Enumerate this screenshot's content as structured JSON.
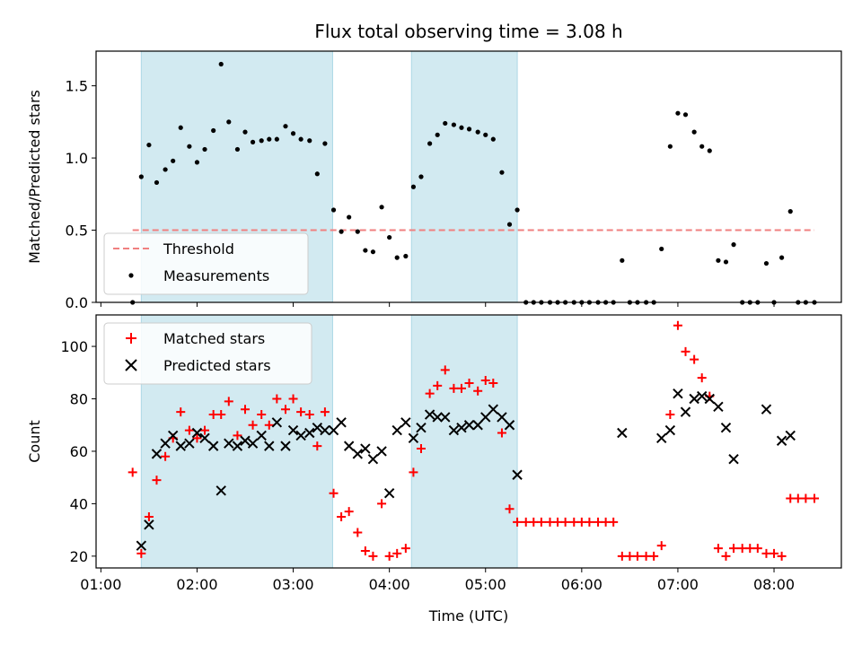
{
  "chart_data": {
    "type": "scatter",
    "title": "Flux total observing time = 3.08 h",
    "xlabel": "Time (UTC)",
    "x_unit": "hours UTC",
    "xlim": [
      0.95,
      8.7
    ],
    "x_ticks": [
      {
        "value": 1,
        "label": "01:00"
      },
      {
        "value": 2,
        "label": "02:00"
      },
      {
        "value": 3,
        "label": "03:00"
      },
      {
        "value": 4,
        "label": "04:00"
      },
      {
        "value": 5,
        "label": "05:00"
      },
      {
        "value": 6,
        "label": "06:00"
      },
      {
        "value": 7,
        "label": "07:00"
      },
      {
        "value": 8,
        "label": "08:00"
      }
    ],
    "shaded_intervals": [
      [
        1.42,
        3.41
      ],
      [
        4.23,
        5.33
      ]
    ],
    "shade_color": "#add8e6",
    "panels": [
      {
        "id": "ratio",
        "ylabel": "Matched/Predicted stars",
        "ylim": [
          0,
          1.74
        ],
        "y_ticks": [
          {
            "value": 0,
            "label": "0.0"
          },
          {
            "value": 0.5,
            "label": "0.5"
          },
          {
            "value": 1.0,
            "label": "1.0"
          },
          {
            "value": 1.5,
            "label": "1.5"
          }
        ],
        "legend": {
          "placement": "lower-left",
          "entries": [
            "Threshold",
            "Measurements"
          ]
        },
        "threshold": {
          "name": "Threshold",
          "value": 0.5,
          "x_range": [
            1.33,
            8.42
          ],
          "color": "#f08080"
        },
        "series": [
          {
            "name": "Measurements",
            "marker": "dot",
            "color": "#000000",
            "x": [
              1.33,
              1.42,
              1.5,
              1.58,
              1.67,
              1.75,
              1.83,
              1.92,
              2.0,
              2.08,
              2.17,
              2.25,
              2.33,
              2.42,
              2.5,
              2.58,
              2.67,
              2.75,
              2.83,
              2.92,
              3.0,
              3.08,
              3.17,
              3.25,
              3.33,
              3.42,
              3.5,
              3.58,
              3.67,
              3.75,
              3.83,
              3.92,
              4.0,
              4.08,
              4.17,
              4.25,
              4.33,
              4.42,
              4.5,
              4.58,
              4.67,
              4.75,
              4.83,
              4.92,
              5.0,
              5.08,
              5.17,
              5.25,
              5.33,
              5.42,
              5.5,
              5.58,
              5.67,
              5.75,
              5.83,
              5.92,
              6.0,
              6.08,
              6.17,
              6.25,
              6.33,
              6.42,
              6.5,
              6.58,
              6.67,
              6.75,
              6.83,
              6.92,
              7.0,
              7.08,
              7.17,
              7.25,
              7.33,
              7.42,
              7.5,
              7.58,
              7.67,
              7.75,
              7.83,
              7.92,
              8.0,
              8.08,
              8.17,
              8.25,
              8.33,
              8.42
            ],
            "y": [
              0.0,
              0.87,
              1.09,
              0.83,
              0.92,
              0.98,
              1.21,
              1.08,
              0.97,
              1.06,
              1.19,
              1.65,
              1.25,
              1.06,
              1.18,
              1.11,
              1.12,
              1.13,
              1.13,
              1.22,
              1.17,
              1.13,
              1.12,
              0.89,
              1.1,
              0.64,
              0.49,
              0.59,
              0.49,
              0.36,
              0.35,
              0.66,
              0.45,
              0.31,
              0.32,
              0.8,
              0.87,
              1.1,
              1.16,
              1.24,
              1.23,
              1.21,
              1.2,
              1.18,
              1.16,
              1.13,
              0.9,
              0.54,
              0.64,
              0.0,
              0.0,
              0.0,
              0.0,
              0.0,
              0.0,
              0.0,
              0.0,
              0.0,
              0.0,
              0.0,
              0.0,
              0.29,
              0.0,
              0.0,
              0.0,
              0.0,
              0.37,
              1.08,
              1.31,
              1.3,
              1.18,
              1.08,
              1.05,
              0.29,
              0.28,
              0.4,
              0.0,
              0.0,
              0.0,
              0.27,
              0.0,
              0.31,
              0.63,
              0.0,
              0.0,
              0.0
            ]
          }
        ]
      },
      {
        "id": "count",
        "ylabel": "Count",
        "ylim": [
          15.5,
          112
        ],
        "y_ticks": [
          {
            "value": 20,
            "label": "20"
          },
          {
            "value": 40,
            "label": "40"
          },
          {
            "value": 60,
            "label": "60"
          },
          {
            "value": 80,
            "label": "80"
          },
          {
            "value": 100,
            "label": "100"
          }
        ],
        "legend": {
          "placement": "upper-left",
          "entries": [
            "Matched stars",
            "Predicted stars"
          ]
        },
        "series": [
          {
            "name": "Matched stars",
            "marker": "plus",
            "color": "#ff0000",
            "x": [
              1.33,
              1.42,
              1.5,
              1.58,
              1.67,
              1.75,
              1.83,
              1.92,
              2.0,
              2.08,
              2.17,
              2.25,
              2.33,
              2.42,
              2.5,
              2.58,
              2.67,
              2.75,
              2.83,
              2.92,
              3.0,
              3.08,
              3.17,
              3.25,
              3.33,
              3.42,
              3.5,
              3.58,
              3.67,
              3.75,
              3.83,
              3.92,
              4.0,
              4.08,
              4.17,
              4.25,
              4.33,
              4.42,
              4.5,
              4.58,
              4.67,
              4.75,
              4.83,
              4.92,
              5.0,
              5.08,
              5.17,
              5.25,
              5.33,
              5.42,
              5.5,
              5.58,
              5.67,
              5.75,
              5.83,
              5.92,
              6.0,
              6.08,
              6.17,
              6.25,
              6.33,
              6.42,
              6.5,
              6.58,
              6.67,
              6.75,
              6.83,
              6.92,
              7.0,
              7.08,
              7.17,
              7.25,
              7.33,
              7.42,
              7.5,
              7.58,
              7.67,
              7.75,
              7.83,
              7.92,
              8.0,
              8.08,
              8.17,
              8.25,
              8.33,
              8.42
            ],
            "y": [
              52,
              21,
              35,
              49,
              58,
              65,
              75,
              68,
              65,
              68,
              74,
              74,
              79,
              66,
              76,
              70,
              74,
              70,
              80,
              76,
              80,
              75,
              74,
              62,
              75,
              44,
              35,
              37,
              29,
              22,
              20,
              40,
              20,
              21,
              23,
              52,
              61,
              82,
              85,
              91,
              84,
              84,
              86,
              83,
              87,
              86,
              67,
              38,
              33,
              33,
              33,
              33,
              33,
              33,
              33,
              33,
              33,
              33,
              33,
              33,
              33,
              20,
              20,
              20,
              20,
              20,
              24,
              74,
              108,
              98,
              95,
              88,
              81,
              23,
              20,
              23,
              23,
              23,
              23,
              21,
              21,
              20,
              42,
              42,
              42,
              42
            ]
          },
          {
            "name": "Predicted stars",
            "marker": "x",
            "color": "#000000",
            "x": [
              1.42,
              1.5,
              1.58,
              1.67,
              1.75,
              1.83,
              1.92,
              2.0,
              2.08,
              2.17,
              2.25,
              2.33,
              2.42,
              2.5,
              2.58,
              2.67,
              2.75,
              2.83,
              2.92,
              3.0,
              3.08,
              3.17,
              3.25,
              3.33,
              3.42,
              3.5,
              3.58,
              3.67,
              3.75,
              3.83,
              3.92,
              4.0,
              4.08,
              4.17,
              4.25,
              4.33,
              4.42,
              4.5,
              4.58,
              4.67,
              4.75,
              4.83,
              4.92,
              5.0,
              5.08,
              5.17,
              5.25,
              5.33,
              6.42,
              6.83,
              6.92,
              7.0,
              7.08,
              7.17,
              7.25,
              7.33,
              7.42,
              7.5,
              7.58,
              7.92,
              8.08,
              8.17
            ],
            "y": [
              24,
              32,
              59,
              63,
              66,
              62,
              63,
              67,
              65,
              62,
              45,
              63,
              62,
              64,
              63,
              66,
              62,
              71,
              62,
              68,
              66,
              67,
              69,
              68,
              68,
              71,
              62,
              59,
              61,
              57,
              60,
              44,
              68,
              71,
              65,
              69,
              74,
              73,
              73,
              68,
              69,
              70,
              70,
              73,
              76,
              73,
              70,
              51,
              67,
              65,
              68,
              82,
              75,
              80,
              81,
              80,
              77,
              69,
              57,
              76,
              64,
              66
            ]
          }
        ]
      }
    ]
  }
}
